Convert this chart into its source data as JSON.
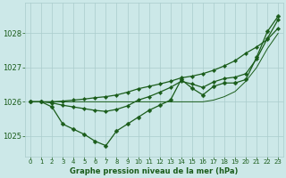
{
  "background_color": "#cce8e8",
  "plot_bg_color": "#cce8e8",
  "grid_color": "#aacccc",
  "line_color_main": "#1a5c1a",
  "title": "Graphe pression niveau de la mer (hPa)",
  "title_color": "#1a5c1a",
  "xlim": [
    -0.5,
    23.5
  ],
  "ylim": [
    1024.4,
    1028.9
  ],
  "yticks": [
    1025,
    1026,
    1027,
    1028
  ],
  "xticks": [
    0,
    1,
    2,
    3,
    4,
    5,
    6,
    7,
    8,
    9,
    10,
    11,
    12,
    13,
    14,
    15,
    16,
    17,
    18,
    19,
    20,
    21,
    22,
    23
  ],
  "series": {
    "jagged": [
      1026.0,
      1026.0,
      1025.85,
      1025.35,
      1025.2,
      1025.05,
      1024.85,
      1024.72,
      1025.15,
      1025.35,
      1025.55,
      1025.75,
      1025.9,
      1026.05,
      1026.65,
      1026.4,
      1026.2,
      1026.45,
      1026.55,
      1026.55,
      1026.65,
      1027.3,
      1028.05,
      1028.5
    ],
    "smooth1": [
      1026.0,
      1026.0,
      1026.0,
      1026.02,
      1026.05,
      1026.08,
      1026.12,
      1026.15,
      1026.2,
      1026.28,
      1026.38,
      1026.45,
      1026.52,
      1026.6,
      1026.7,
      1026.75,
      1026.82,
      1026.92,
      1027.05,
      1027.2,
      1027.42,
      1027.6,
      1027.82,
      1028.15
    ],
    "smooth2": [
      1026.0,
      1026.0,
      1025.97,
      1025.9,
      1025.85,
      1025.8,
      1025.75,
      1025.72,
      1025.78,
      1025.88,
      1026.05,
      1026.15,
      1026.28,
      1026.42,
      1026.6,
      1026.52,
      1026.42,
      1026.58,
      1026.68,
      1026.72,
      1026.82,
      1027.25,
      1027.85,
      1028.4
    ],
    "straight": [
      1026.0,
      1026.0,
      1026.0,
      1026.0,
      1026.0,
      1026.0,
      1026.0,
      1026.0,
      1026.0,
      1026.0,
      1026.0,
      1026.0,
      1026.0,
      1026.0,
      1026.0,
      1026.0,
      1026.0,
      1026.05,
      1026.15,
      1026.3,
      1026.6,
      1027.0,
      1027.55,
      1028.0
    ]
  }
}
